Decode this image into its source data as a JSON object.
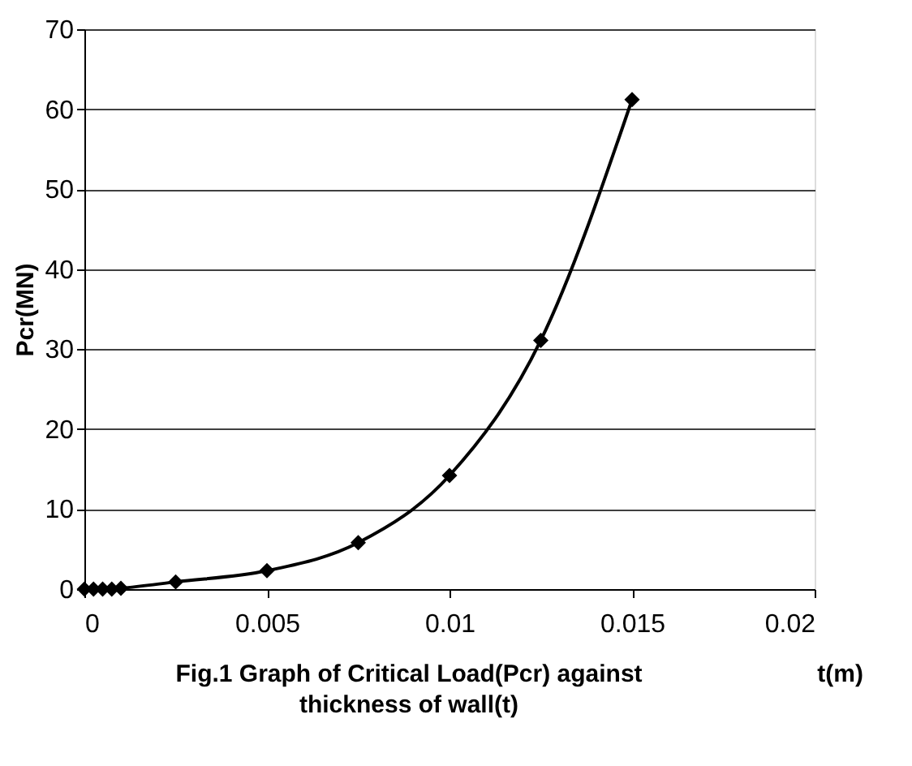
{
  "chart_data": {
    "type": "line",
    "title": [
      "Fig.1  Graph of Critical Load(Pcr) against",
      "thickness of wall(t)"
    ],
    "xlabel": "t(m)",
    "ylabel": "Pcr(MN)",
    "x": [
      0,
      0.00025,
      0.0005,
      0.00075,
      0.001,
      0.0025,
      0.005,
      0.0075,
      0.01,
      0.0125,
      0.015
    ],
    "series": [
      {
        "color": "#000000",
        "values": [
          0,
          0,
          0,
          0,
          0.1,
          0.9,
          2.3,
          5.8,
          14.2,
          31.1,
          61.2
        ]
      }
    ],
    "xlim": [
      0,
      0.02
    ],
    "xticks": [
      0,
      0.005,
      0.01,
      0.015,
      0.02
    ],
    "ylim": [
      0,
      70
    ],
    "yticks": [
      0,
      10,
      20,
      30,
      40,
      50,
      60,
      70
    ],
    "grid": "y",
    "marker": "diamond",
    "line_style": "solid"
  }
}
